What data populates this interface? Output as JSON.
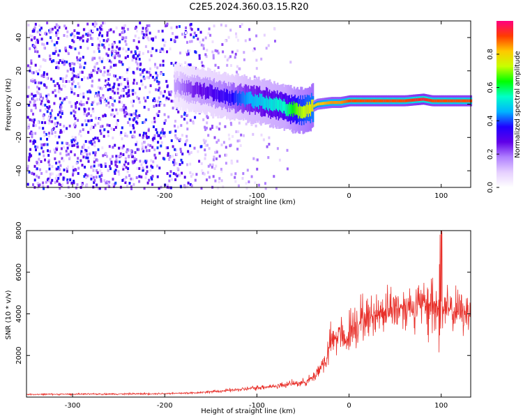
{
  "figure": {
    "title": "C2E5.2024.360.03.15.R20"
  },
  "chart_data": [
    {
      "type": "heatmap",
      "title": "C2E5.2024.360.03.15.R20",
      "xlabel": "Height of straight line (km)",
      "ylabel": "Frequency (Hz)",
      "xlim": [
        -350,
        132
      ],
      "ylim": [
        -50,
        50
      ],
      "xticks": [
        -300,
        -200,
        -100,
        0,
        100
      ],
      "yticks": [
        -40,
        -20,
        0,
        20,
        40
      ],
      "colorbar": {
        "label": "Normalized spectral amplitude",
        "range": [
          0,
          1
        ],
        "ticks": [
          0.0,
          0.2,
          0.4,
          0.6,
          0.8
        ],
        "colormap": [
          "#ffffff",
          "#e6d0ff",
          "#b080ff",
          "#6000e8",
          "#2000ff",
          "#00b4ff",
          "#00ffc8",
          "#00ff00",
          "#c8ff00",
          "#ffc800",
          "#ff3c00",
          "#ff0080"
        ]
      },
      "ridge": {
        "x": [
          -190,
          -170,
          -150,
          -130,
          -110,
          -90,
          -70,
          -55,
          -45,
          -35,
          -20,
          -10,
          0,
          20,
          40,
          60,
          80,
          90,
          100,
          132
        ],
        "frequency": [
          11,
          9,
          7,
          4,
          3,
          1,
          -2,
          -4,
          -3,
          0,
          1,
          1,
          2,
          2,
          2,
          2,
          3,
          2,
          2,
          2
        ],
        "amplitude": [
          0.15,
          0.25,
          0.3,
          0.35,
          0.45,
          0.5,
          0.55,
          0.7,
          0.75,
          0.8,
          0.85,
          0.85,
          0.9,
          0.9,
          0.9,
          0.9,
          0.95,
          0.9,
          0.9,
          0.9
        ]
      },
      "noise_extent_x": [
        -350,
        -60
      ]
    },
    {
      "type": "line",
      "xlabel": "Height of straight line (km)",
      "ylabel": "SNR (10 * v/v)",
      "xlim": [
        -350,
        132
      ],
      "ylim": [
        0,
        8000
      ],
      "xticks": [
        -300,
        -200,
        -100,
        0,
        100
      ],
      "yticks": [
        2000,
        4000,
        6000,
        8000
      ],
      "series": [
        {
          "color": "#e8302a",
          "x": [
            -350,
            -300,
            -250,
            -200,
            -170,
            -150,
            -130,
            -110,
            -100,
            -90,
            -80,
            -70,
            -60,
            -50,
            -40,
            -30,
            -25,
            -20,
            -15,
            -10,
            -5,
            0,
            5,
            10,
            15,
            20,
            30,
            40,
            50,
            60,
            70,
            80,
            85,
            90,
            95,
            100,
            105,
            110,
            120,
            132
          ],
          "y": [
            130,
            140,
            150,
            170,
            200,
            260,
            320,
            400,
            450,
            500,
            520,
            600,
            650,
            700,
            900,
            1500,
            1800,
            2600,
            2800,
            3200,
            2500,
            3200,
            3500,
            3600,
            3700,
            3800,
            4000,
            4200,
            4300,
            4350,
            4400,
            4400,
            4450,
            4500,
            4300,
            4400,
            4200,
            4150,
            4100,
            4150
          ]
        }
      ]
    }
  ]
}
